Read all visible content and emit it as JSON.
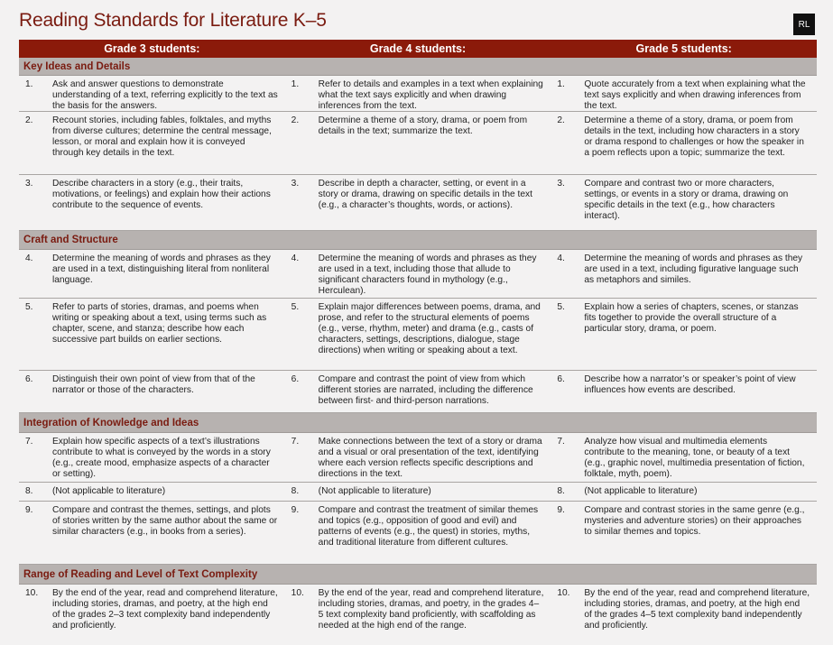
{
  "title": "Reading Standards for Literature K–5",
  "badge": "RL",
  "columns": [
    "Grade 3 students:",
    "Grade 4 students:",
    "Grade 5 students:"
  ],
  "sections": [
    {
      "label": "Key Ideas and Details",
      "rows": [
        {
          "num": "1.",
          "g3": "Ask and answer questions to demonstrate understanding of a text, referring explicitly to the text as the basis for the answers.",
          "g4": "Refer to details and examples in a text when explaining what the text says explicitly and when drawing inferences from the text.",
          "g5": "Quote accurately from a text when explaining what the text says explicitly and when drawing inferences from the text."
        },
        {
          "num": "2.",
          "g3": "Recount stories, including fables, folktales, and myths from diverse cultures; determine the central message, lesson, or moral and explain how it is conveyed through key details in the text.",
          "g4": "Determine a theme of a story, drama, or poem from details in the text; summarize the text.",
          "g5": "Determine a theme of a story, drama, or poem from details in the text, including how characters in a story or drama respond to challenges or how the speaker in a poem reflects upon a topic; summarize the text."
        },
        {
          "num": "3.",
          "g3": "Describe characters in a story (e.g., their traits, motivations, or feelings) and explain how their actions contribute to the sequence of events.",
          "g4": "Describe in depth a character, setting, or event in a story or drama, drawing on specific details in the text (e.g., a character’s thoughts, words, or actions).",
          "g5": "Compare and contrast two or more characters, settings, or events in a story or drama, drawing on specific details in the text (e.g., how characters interact)."
        }
      ]
    },
    {
      "label": "Craft and Structure",
      "rows": [
        {
          "num": "4.",
          "g3": "Determine the meaning of words and phrases as they are used in a text, distinguishing literal from nonliteral language.",
          "g4": "Determine the meaning of words and phrases as they are used in a text, including those that allude to significant characters found in mythology (e.g., Herculean).",
          "g5": "Determine the meaning of words and phrases as they are used in a text, including figurative language such as metaphors and similes."
        },
        {
          "num": "5.",
          "g3": "Refer to parts of stories, dramas, and poems when writing or speaking about a text, using terms such as chapter, scene, and stanza; describe how each successive part builds on earlier sections.",
          "g4": "Explain major differences between poems, drama, and prose, and refer to the structural elements of poems (e.g., verse, rhythm, meter) and drama (e.g., casts of characters, settings, descriptions, dialogue, stage directions) when writing or speaking about a text.",
          "g5": "Explain how a series of chapters, scenes, or stanzas fits together to provide the overall structure of a particular story, drama, or poem."
        },
        {
          "num": "6.",
          "g3": "Distinguish their own point of view from that of the narrator or those of the characters.",
          "g4": "Compare and contrast the point of view from which different stories are narrated, including the difference between first- and third-person narrations.",
          "g5": "Describe how a narrator’s or speaker’s point of view influences how events are described."
        }
      ]
    },
    {
      "label": "Integration of Knowledge and Ideas",
      "rows": [
        {
          "num": "7.",
          "g3": "Explain how specific aspects of a text’s illustrations contribute to what is conveyed by the words in a story (e.g., create mood, emphasize aspects of a character or setting).",
          "g4": "Make connections between the text of a story or drama and a visual or oral presentation of the text, identifying where each version reflects specific descriptions and directions in the text.",
          "g5": "Analyze how visual and multimedia elements contribute to the meaning, tone, or beauty of a text (e.g., graphic novel, multimedia presentation of fiction, folktale, myth, poem)."
        },
        {
          "num": "8.",
          "g3": "(Not applicable to literature)",
          "g4": "(Not applicable to literature)",
          "g5": "(Not applicable to literature)"
        },
        {
          "num": "9.",
          "g3": "Compare and contrast the themes, settings, and plots of stories written by the same author about the same or similar characters (e.g., in books from a series).",
          "g4": "Compare and contrast the treatment of similar themes and topics (e.g., opposition of good and evil) and patterns of events (e.g., the quest) in stories, myths, and traditional literature from different cultures.",
          "g5": "Compare and contrast stories in the same genre (e.g., mysteries and adventure stories) on their approaches to similar themes and topics."
        }
      ]
    },
    {
      "label": "Range of Reading and Level of Text Complexity",
      "rows": [
        {
          "num": "10.",
          "g3": "By the end of the year, read and comprehend literature, including stories, dramas, and poetry, at the high end of the grades 2–3 text complexity band independently and proficiently.",
          "g4": "By the end of the year, read and comprehend literature, including stories, dramas, and poetry, in the grades 4–5 text complexity band proficiently, with scaffolding as needed at the high end of the range.",
          "g5": "By the end of the year, read and comprehend literature, including stories, dramas, and poetry, at the high end of the grades 4–5 text complexity band independently and proficiently."
        }
      ]
    }
  ]
}
